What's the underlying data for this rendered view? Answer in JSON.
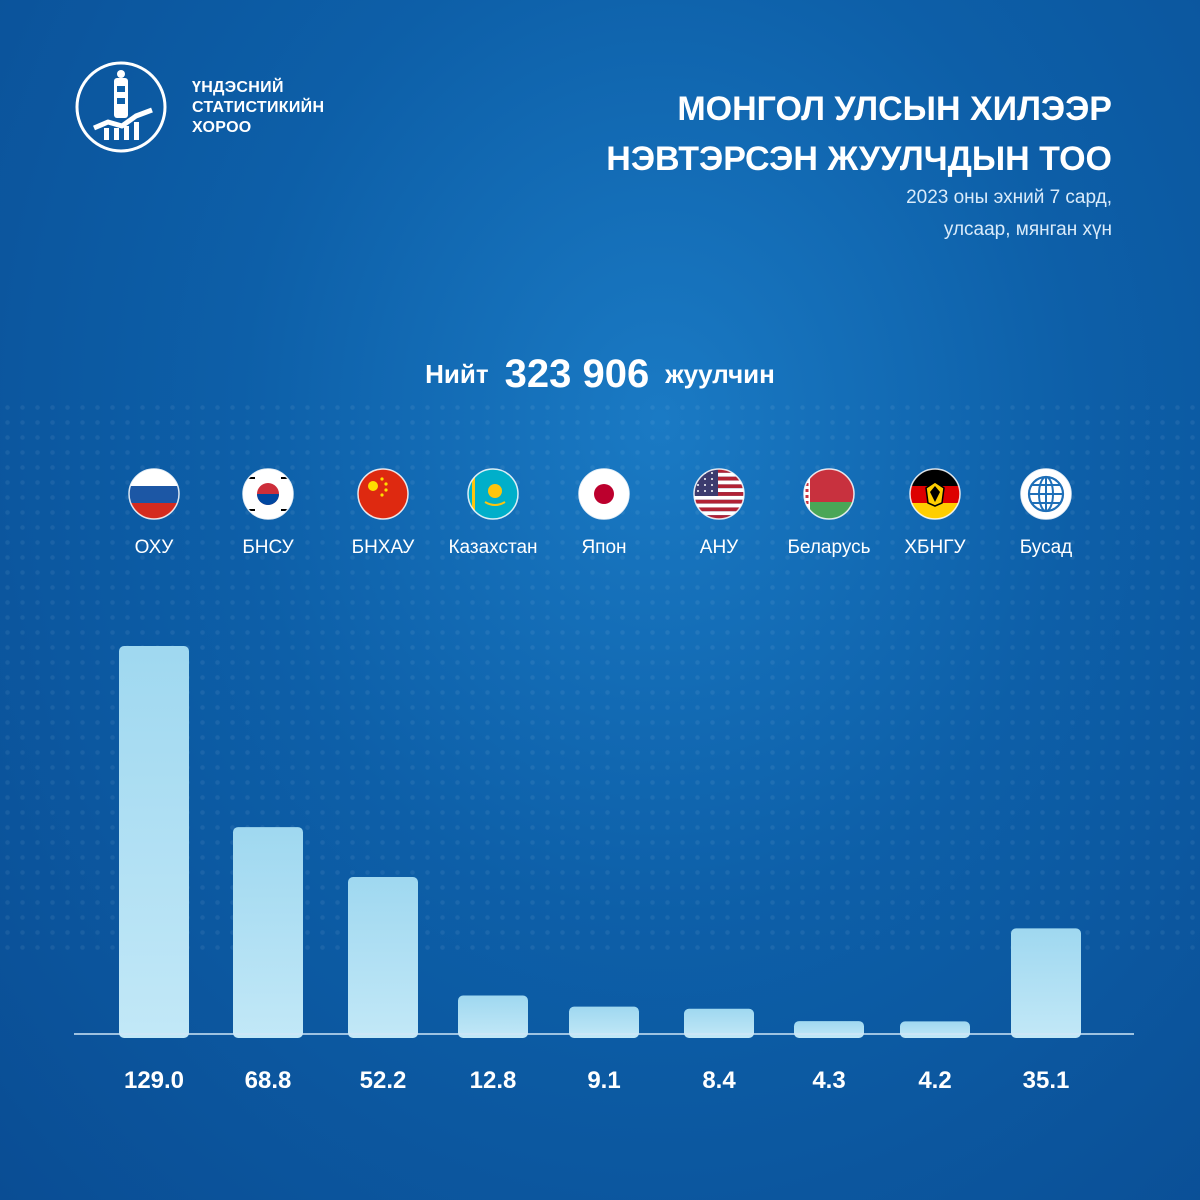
{
  "org": {
    "line1": "ҮНДЭСНИЙ",
    "line2": "СТАТИСТИКИЙН",
    "line3": "ХОРОО"
  },
  "header": {
    "title_line1": "МОНГОЛ УЛСЫН ХИЛЭЭР",
    "title_line2": "НЭВТЭРСЭН ЖУУЛЧДЫН ТОО",
    "subtitle_line1": "2023 оны эхний 7 сард,",
    "subtitle_line2": "улсаар, мянган хүн"
  },
  "total": {
    "prefix": "Нийт",
    "value": "323 906",
    "suffix": "жуулчин"
  },
  "colors": {
    "bar": "#a8dcf2",
    "axis": "#cfe6f7",
    "background": "#0d5fa8"
  },
  "chart_data": {
    "type": "bar",
    "categories": [
      "ОХУ",
      "БНСУ",
      "БНХАУ",
      "Казахстан",
      "Япон",
      "АНУ",
      "Беларусь",
      "ХБНГУ",
      "Бусад"
    ],
    "values": [
      129.0,
      68.8,
      52.2,
      12.8,
      9.1,
      8.4,
      4.3,
      4.2,
      35.1
    ],
    "value_labels": [
      "129.0",
      "68.8",
      "52.2",
      "12.8",
      "9.1",
      "8.4",
      "4.3",
      "4.2",
      "35.1"
    ],
    "icons": [
      "russia-flag-icon",
      "south-korea-flag-icon",
      "china-flag-icon",
      "kazakhstan-flag-icon",
      "japan-flag-icon",
      "usa-flag-icon",
      "belarus-flag-icon",
      "germany-flag-icon",
      "globe-icon"
    ],
    "grid": false,
    "ylim": [
      0,
      129
    ]
  }
}
